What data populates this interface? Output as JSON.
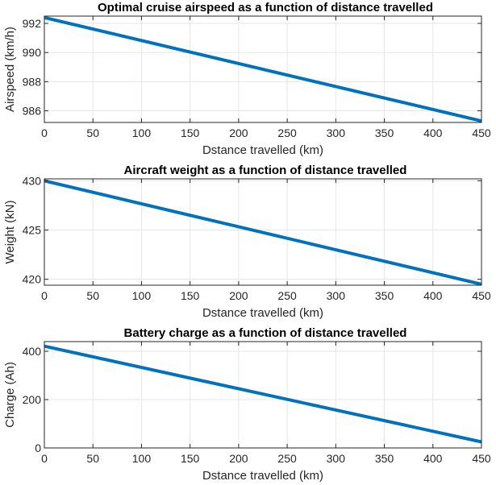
{
  "chart_data": [
    {
      "type": "line",
      "title": "Optimal cruise airspeed as a function of distance travelled",
      "xlabel": "Dstance travelled (km)",
      "ylabel": "Airspeed (km/h)",
      "xlim": [
        0,
        450
      ],
      "ylim": [
        985.2,
        992.5
      ],
      "xticks": [
        0,
        50,
        100,
        150,
        200,
        250,
        300,
        350,
        400,
        450
      ],
      "yticks": [
        986,
        988,
        990,
        992
      ],
      "grid": true,
      "color": "#0072bd",
      "series": [
        {
          "name": "airspeed",
          "x": [
            0,
            450
          ],
          "y": [
            992.4,
            985.3
          ]
        }
      ]
    },
    {
      "type": "line",
      "title": "Aircraft weight as a function of distance travelled",
      "xlabel": "Dstance travelled (km)",
      "ylabel": "Weight (kN)",
      "xlim": [
        0,
        450
      ],
      "ylim": [
        419.4,
        430.2
      ],
      "xticks": [
        0,
        50,
        100,
        150,
        200,
        250,
        300,
        350,
        400,
        450
      ],
      "yticks": [
        420,
        425,
        430
      ],
      "grid": true,
      "color": "#0072bd",
      "series": [
        {
          "name": "weight",
          "x": [
            0,
            450
          ],
          "y": [
            430.0,
            419.5
          ]
        }
      ]
    },
    {
      "type": "line",
      "title": "Battery charge as a function of distance travelled",
      "xlabel": "Dstance travelled (km)",
      "ylabel": "Charge (Ah)",
      "xlim": [
        0,
        450
      ],
      "ylim": [
        0,
        440
      ],
      "xticks": [
        0,
        50,
        100,
        150,
        200,
        250,
        300,
        350,
        400,
        450
      ],
      "yticks": [
        0,
        200,
        400
      ],
      "grid": true,
      "color": "#0072bd",
      "series": [
        {
          "name": "charge",
          "x": [
            0,
            450
          ],
          "y": [
            421,
            25
          ]
        }
      ]
    }
  ]
}
